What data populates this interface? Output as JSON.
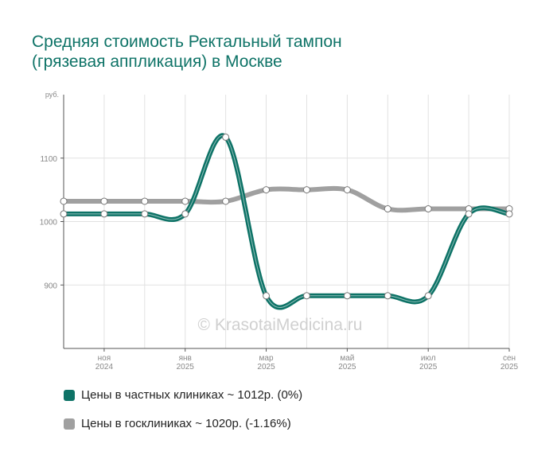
{
  "title_line1": "Средняя стоимость Ректальный тампон",
  "title_line2": "(грязевая аппликация) в Москве",
  "watermark": "© KrasotaiMedicina.ru",
  "chart_data": {
    "type": "line",
    "y_unit": "руб.",
    "ylim": [
      800,
      1200
    ],
    "y_ticks": [
      900,
      1000,
      1100
    ],
    "x_points": [
      "2024-10",
      "2024-11",
      "2024-12",
      "2025-01",
      "2025-02",
      "2025-03",
      "2025-04",
      "2025-05",
      "2025-06",
      "2025-07",
      "2025-08",
      "2025-09"
    ],
    "x_tick_labels": [
      {
        "month": "ноя",
        "year": "2024"
      },
      {
        "month": "янв",
        "year": "2025"
      },
      {
        "month": "мар",
        "year": "2025"
      },
      {
        "month": "май",
        "year": "2025"
      },
      {
        "month": "июл",
        "year": "2025"
      },
      {
        "month": "сен",
        "year": "2025"
      }
    ],
    "x_tick_indices": [
      1,
      3,
      5,
      7,
      9,
      11
    ],
    "grid": true,
    "legend_position": "bottom",
    "series": [
      {
        "name": "Цены в частных клиниках ~ 1012р. (0%)",
        "color": "#0e7367",
        "values": [
          1012,
          1012,
          1012,
          1012,
          1133,
          883,
          883,
          883,
          883,
          883,
          1012,
          1012
        ]
      },
      {
        "name": "Цены в госклиниках ~ 1020р. (-1.16%)",
        "color": "#a0a0a0",
        "values": [
          1032,
          1032,
          1032,
          1032,
          1032,
          1050,
          1050,
          1050,
          1020,
          1020,
          1020,
          1020
        ]
      }
    ]
  }
}
